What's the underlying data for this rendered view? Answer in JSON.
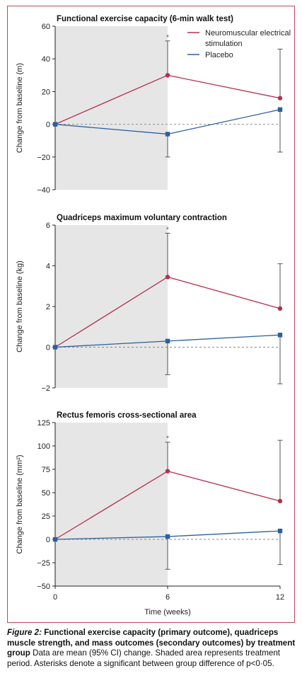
{
  "chart_data": [
    {
      "type": "line",
      "title": "Functional exercise capacity (6-min walk test)",
      "ylabel": "Change from baseline (m)",
      "xlabel": "",
      "x": [
        0,
        6,
        12
      ],
      "xlim": [
        0,
        12
      ],
      "ylim": [
        -40,
        60
      ],
      "yticks": [
        -40,
        -20,
        0,
        20,
        40,
        60
      ],
      "ytick_labels": [
        "−40",
        "−20",
        "0",
        "20",
        "40",
        "60"
      ],
      "shaded_x": [
        0,
        6
      ],
      "reference_line_y": 0,
      "legend": "top-right",
      "significance_marks": [
        {
          "x": 6,
          "label": "*"
        }
      ],
      "series": [
        {
          "name": "Neuromuscular electrical stimulation",
          "color": "#b5304d",
          "marker": "circle",
          "values": [
            0,
            30,
            16
          ],
          "ci_lower": [
            null,
            null,
            null
          ],
          "ci_upper": [
            null,
            51,
            46
          ]
        },
        {
          "name": "Placebo",
          "color": "#2c5f9e",
          "marker": "square",
          "values": [
            0,
            -6,
            9
          ],
          "ci_lower": [
            null,
            -20,
            -17
          ],
          "ci_upper": [
            null,
            null,
            null
          ]
        }
      ]
    },
    {
      "type": "line",
      "title": "Quadriceps maximum voluntary contraction",
      "ylabel": "Change from baseline (kg)",
      "xlabel": "",
      "x": [
        0,
        6,
        12
      ],
      "xlim": [
        0,
        12
      ],
      "ylim": [
        -2,
        6
      ],
      "yticks": [
        -2,
        0,
        2,
        4,
        6
      ],
      "ytick_labels": [
        "−2",
        "0",
        "2",
        "4",
        "6"
      ],
      "shaded_x": [
        0,
        6
      ],
      "reference_line_y": 0,
      "significance_marks": [
        {
          "x": 6,
          "label": "*"
        }
      ],
      "series": [
        {
          "name": "Neuromuscular electrical stimulation",
          "color": "#b5304d",
          "marker": "circle",
          "values": [
            0,
            3.45,
            1.9
          ],
          "ci_lower": [
            null,
            null,
            null
          ],
          "ci_upper": [
            null,
            5.6,
            4.1
          ]
        },
        {
          "name": "Placebo",
          "color": "#2c5f9e",
          "marker": "square",
          "values": [
            0,
            0.3,
            0.6
          ],
          "ci_lower": [
            null,
            -1.35,
            -1.8
          ],
          "ci_upper": [
            null,
            null,
            null
          ]
        }
      ]
    },
    {
      "type": "line",
      "title": "Rectus femoris cross-sectional area",
      "ylabel": "Change from baseline (mm²)",
      "xlabel": "Time (weeks)",
      "x": [
        0,
        6,
        12
      ],
      "xlim": [
        0,
        12
      ],
      "xticks": [
        0,
        6,
        12
      ],
      "xtick_labels": [
        "0",
        "6",
        "12"
      ],
      "ylim": [
        -50,
        125
      ],
      "yticks": [
        -50,
        -25,
        0,
        25,
        50,
        75,
        100,
        125
      ],
      "ytick_labels": [
        "−50",
        "−25",
        "0",
        "25",
        "50",
        "75",
        "100",
        "125"
      ],
      "shaded_x": [
        0,
        6
      ],
      "reference_line_y": 0,
      "significance_marks": [
        {
          "x": 6,
          "label": "*"
        }
      ],
      "series": [
        {
          "name": "Neuromuscular electrical stimulation",
          "color": "#b5304d",
          "marker": "circle",
          "values": [
            0,
            73,
            41
          ],
          "ci_lower": [
            null,
            null,
            null
          ],
          "ci_upper": [
            null,
            104,
            106
          ]
        },
        {
          "name": "Placebo",
          "color": "#2c5f9e",
          "marker": "square",
          "values": [
            0,
            3,
            9
          ],
          "ci_lower": [
            null,
            -32,
            -27
          ],
          "ci_upper": [
            null,
            null,
            null
          ]
        }
      ]
    }
  ],
  "legend": {
    "items": [
      {
        "label_lines": [
          "Neuromuscular electrical",
          "stimulation"
        ],
        "color": "#b5304d"
      },
      {
        "label_lines": [
          "Placebo"
        ],
        "color": "#2c5f9e"
      }
    ]
  },
  "caption": {
    "figure_label": "Figure 2:",
    "title": " Functional exercise capacity (primary outcome), quadriceps muscle strength, and mass outcomes (secondary outcomes) by treatment group",
    "body": "Data are mean (95% CI) change. Shaded area represents treatment period. Asterisks denote a significant between group difference of p<0·05."
  },
  "colors": {
    "frame": "#c8455a",
    "shading": "#e6e6e6",
    "axis": "#222222",
    "error_bar": "#555555",
    "reference_line": "#888888"
  }
}
